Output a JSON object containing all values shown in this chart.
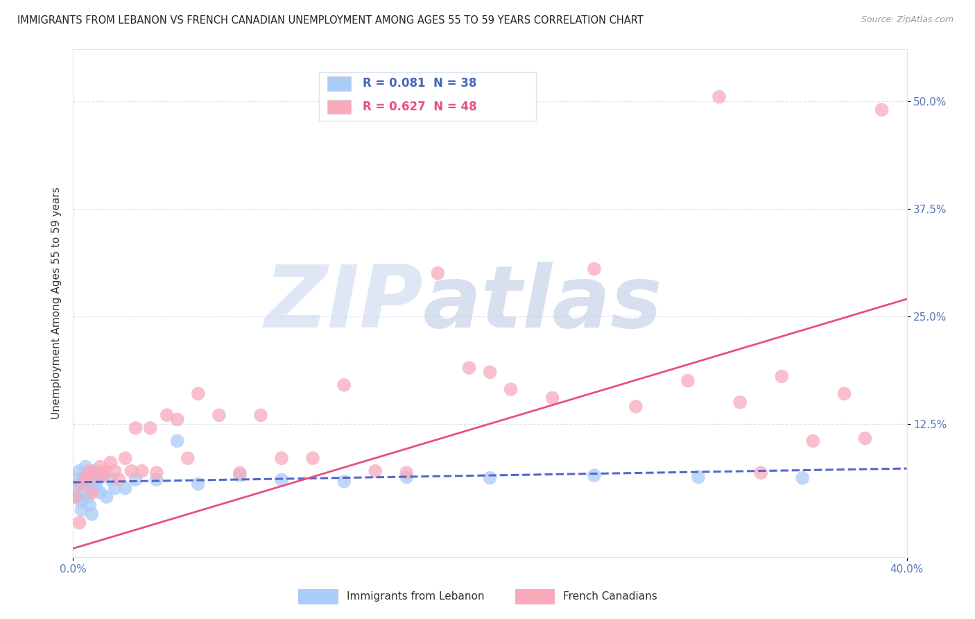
{
  "title": "IMMIGRANTS FROM LEBANON VS FRENCH CANADIAN UNEMPLOYMENT AMONG AGES 55 TO 59 YEARS CORRELATION CHART",
  "source": "Source: ZipAtlas.com",
  "ylabel": "Unemployment Among Ages 55 to 59 years",
  "xlim": [
    0.0,
    0.4
  ],
  "ylim": [
    -0.03,
    0.56
  ],
  "xticks": [
    0.0,
    0.4
  ],
  "xticklabels": [
    "0.0%",
    "40.0%"
  ],
  "ytick_vals": [
    0.125,
    0.25,
    0.375,
    0.5
  ],
  "ytick_labels": [
    "12.5%",
    "25.0%",
    "37.5%",
    "50.0%"
  ],
  "legend_label1": "Immigrants from Lebanon",
  "legend_label2": "French Canadians",
  "R1": "0.081",
  "N1": "38",
  "R2": "0.627",
  "N2": "48",
  "color1": "#aaccf8",
  "color2": "#f8aabb",
  "line_color1": "#5566cc",
  "line_color2": "#e8507a",
  "text_color": "#4466bb",
  "watermark_zip": "#c8d4ee",
  "watermark_atlas": "#b0c0e0",
  "background_color": "#ffffff",
  "title_fontsize": 10.5,
  "tick_color": "#5577bb",
  "grid_color": "#dde4f0",
  "blue_scatter_x": [
    0.001,
    0.002,
    0.002,
    0.003,
    0.003,
    0.004,
    0.004,
    0.005,
    0.005,
    0.006,
    0.006,
    0.007,
    0.007,
    0.008,
    0.008,
    0.009,
    0.01,
    0.01,
    0.011,
    0.012,
    0.013,
    0.014,
    0.016,
    0.018,
    0.02,
    0.025,
    0.03,
    0.04,
    0.05,
    0.06,
    0.08,
    0.1,
    0.13,
    0.16,
    0.2,
    0.25,
    0.3,
    0.35
  ],
  "blue_scatter_y": [
    0.05,
    0.06,
    0.04,
    0.055,
    0.07,
    0.035,
    0.025,
    0.065,
    0.045,
    0.06,
    0.075,
    0.04,
    0.055,
    0.03,
    0.065,
    0.02,
    0.055,
    0.07,
    0.05,
    0.06,
    0.045,
    0.065,
    0.04,
    0.06,
    0.05,
    0.05,
    0.06,
    0.06,
    0.105,
    0.055,
    0.065,
    0.06,
    0.058,
    0.063,
    0.062,
    0.065,
    0.063,
    0.062
  ],
  "pink_scatter_x": [
    0.001,
    0.003,
    0.004,
    0.006,
    0.008,
    0.009,
    0.011,
    0.013,
    0.015,
    0.018,
    0.02,
    0.022,
    0.025,
    0.028,
    0.03,
    0.033,
    0.037,
    0.04,
    0.045,
    0.05,
    0.055,
    0.06,
    0.07,
    0.08,
    0.09,
    0.1,
    0.115,
    0.13,
    0.145,
    0.16,
    0.175,
    0.19,
    0.2,
    0.21,
    0.23,
    0.25,
    0.27,
    0.295,
    0.31,
    0.32,
    0.33,
    0.34,
    0.355,
    0.37,
    0.38,
    0.388,
    0.007,
    0.015
  ],
  "pink_scatter_y": [
    0.04,
    0.01,
    0.055,
    0.06,
    0.07,
    0.045,
    0.065,
    0.075,
    0.065,
    0.08,
    0.07,
    0.06,
    0.085,
    0.07,
    0.12,
    0.07,
    0.12,
    0.068,
    0.135,
    0.13,
    0.085,
    0.16,
    0.135,
    0.068,
    0.135,
    0.085,
    0.085,
    0.17,
    0.07,
    0.068,
    0.3,
    0.19,
    0.185,
    0.165,
    0.155,
    0.305,
    0.145,
    0.175,
    0.505,
    0.15,
    0.068,
    0.18,
    0.105,
    0.16,
    0.108,
    0.49,
    0.065,
    0.07
  ],
  "blue_line_x0": 0.0,
  "blue_line_x1": 0.4,
  "blue_line_y0": 0.057,
  "blue_line_y1": 0.073,
  "pink_line_x0": 0.0,
  "pink_line_x1": 0.4,
  "pink_line_y0": -0.02,
  "pink_line_y1": 0.27
}
